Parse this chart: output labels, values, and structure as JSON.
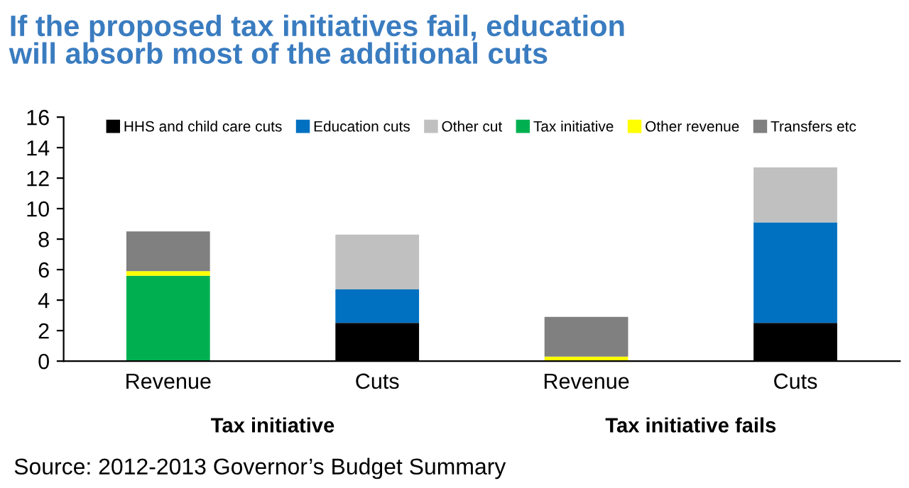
{
  "chart_data": {
    "type": "bar",
    "stacked": true,
    "title": "If the proposed tax initiatives fail, education\nwill absorb most of the additional cuts",
    "categories": [
      "Revenue",
      "Cuts",
      "Revenue",
      "Cuts"
    ],
    "series": [
      {
        "name": "HHS and child care cuts",
        "color": "#000000",
        "values": [
          null,
          2.5,
          null,
          2.5
        ]
      },
      {
        "name": "Education cuts",
        "color": "#0070c0",
        "values": [
          null,
          2.2,
          null,
          6.6
        ]
      },
      {
        "name": "Other cut",
        "color": "#c0c0c0",
        "values": [
          null,
          3.6,
          null,
          3.6
        ]
      },
      {
        "name": "Tax initiative",
        "color": "#00b050",
        "values": [
          5.6,
          null,
          null,
          null
        ]
      },
      {
        "name": "Other revenue",
        "color": "#ffff00",
        "values": [
          0.3,
          null,
          0.3,
          null
        ]
      },
      {
        "name": "Transfers etc",
        "color": "#808080",
        "values": [
          2.6,
          null,
          2.6,
          null
        ]
      }
    ],
    "ylim": [
      0,
      16
    ],
    "yticks": [
      0,
      2,
      4,
      6,
      8,
      10,
      12,
      14,
      16
    ],
    "grid": false,
    "legend": "top",
    "annotations": [
      "Tax initiative",
      "Tax initiative fails",
      "Source: 2012-2013 Governor’s Budget Summary"
    ]
  }
}
